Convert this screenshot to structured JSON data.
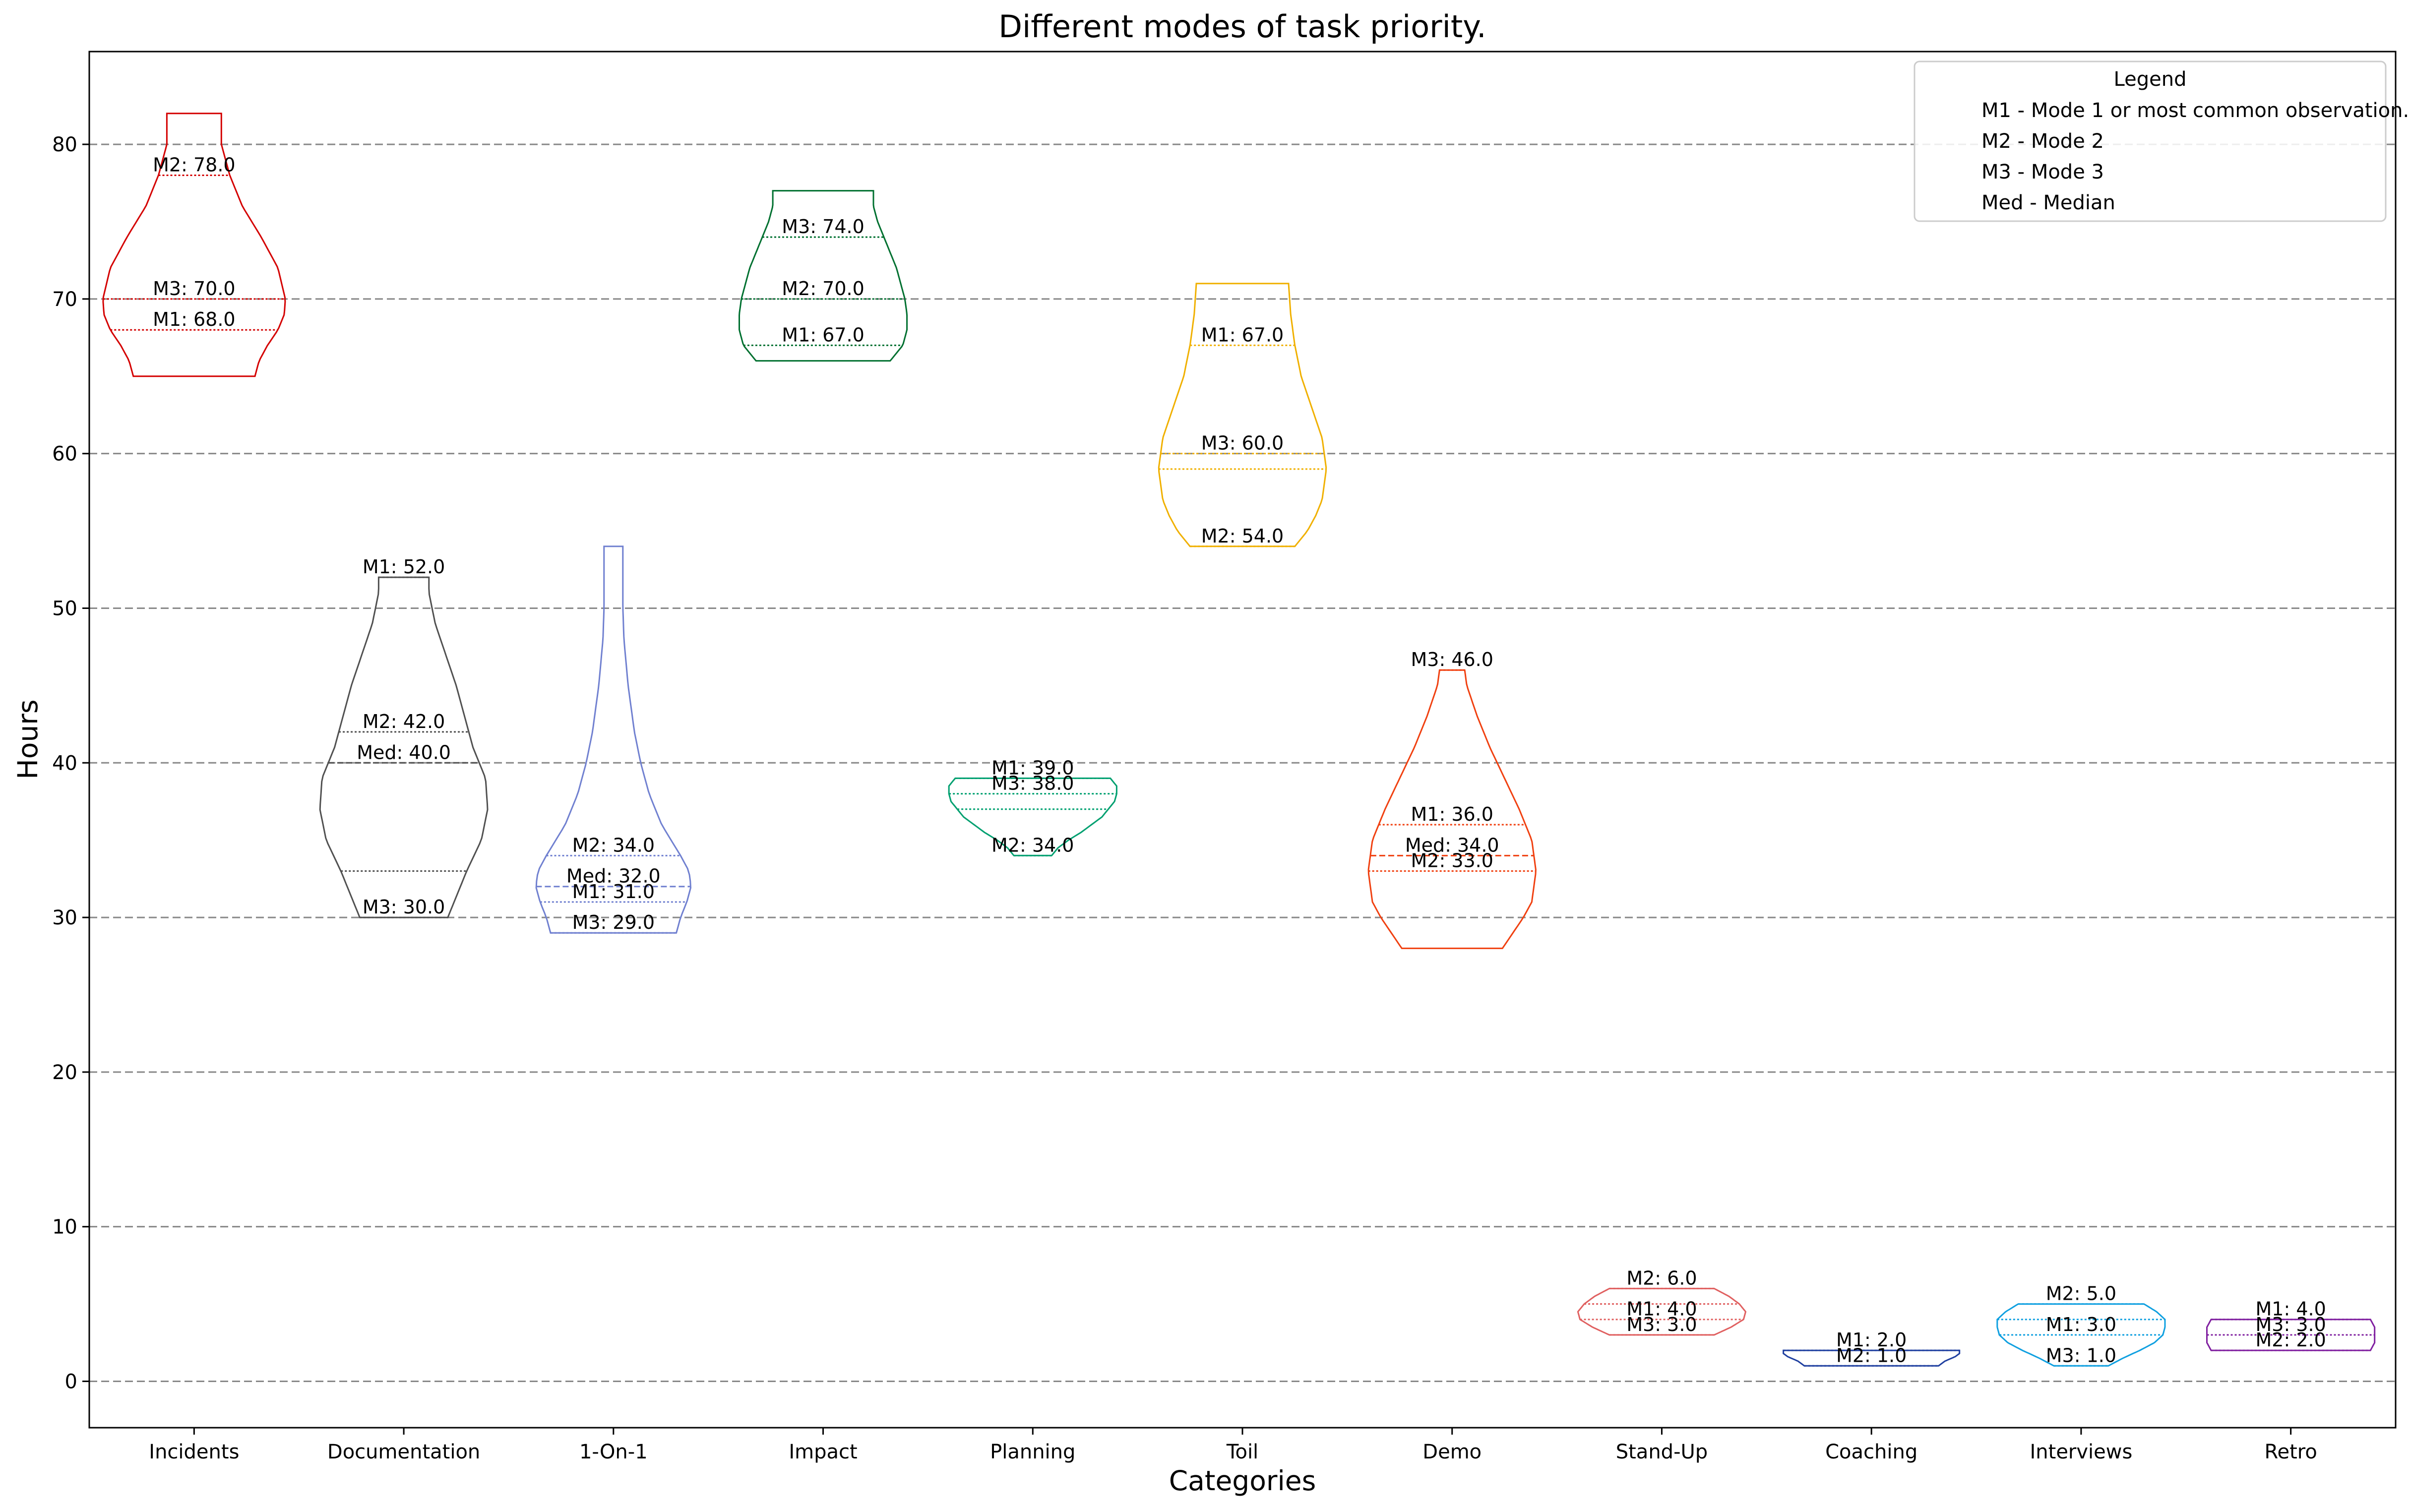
{
  "chart_data": {
    "type": "violin",
    "title": "Different modes of task priority.",
    "xlabel": "Categories",
    "ylabel": "Hours",
    "ylim": [
      -3,
      86
    ],
    "yticks": [
      0,
      10,
      20,
      30,
      40,
      50,
      60,
      70,
      80
    ],
    "grid": "horizontal dashed",
    "legend": {
      "title": "Legend",
      "placement": "top-right",
      "entries": [
        "M1 - Mode 1 or most common observation.",
        "M2 - Mode 2",
        "M3 - Mode 3",
        "Med - Median"
      ]
    },
    "categories": [
      {
        "name": "Incidents",
        "color": "#d40000",
        "min": 65,
        "max": 82,
        "profile": [
          [
            65,
            0.58
          ],
          [
            66,
            0.62
          ],
          [
            67,
            0.7
          ],
          [
            68,
            0.8
          ],
          [
            69,
            0.86
          ],
          [
            70,
            0.87
          ],
          [
            72,
            0.8
          ],
          [
            74,
            0.64
          ],
          [
            76,
            0.46
          ],
          [
            78,
            0.34
          ],
          [
            80,
            0.26
          ],
          [
            82,
            0.26
          ]
        ],
        "lines": [
          {
            "label": "M2: 78.0",
            "y": 78
          },
          {
            "label": "M3: 70.0",
            "y": 70
          },
          {
            "label": "M1: 68.0",
            "y": 68
          }
        ]
      },
      {
        "name": "Documentation",
        "color": "#505050",
        "min": 30,
        "max": 52,
        "profile": [
          [
            30,
            0.42
          ],
          [
            31,
            0.48
          ],
          [
            33,
            0.6
          ],
          [
            35,
            0.74
          ],
          [
            37,
            0.8
          ],
          [
            39,
            0.78
          ],
          [
            41,
            0.66
          ],
          [
            43,
            0.58
          ],
          [
            45,
            0.5
          ],
          [
            47,
            0.4
          ],
          [
            49,
            0.3
          ],
          [
            51,
            0.24
          ],
          [
            52,
            0.24
          ]
        ],
        "lines": [
          {
            "label": "M1: 52.0",
            "y": 52
          },
          {
            "label": "M2: 42.0",
            "y": 42
          },
          {
            "label": "Med: 40.0",
            "y": 40
          },
          {
            "label": "",
            "y": 33
          },
          {
            "label": "M3: 30.0",
            "y": 30
          }
        ]
      },
      {
        "name": "1-On-1",
        "color": "#7080d0",
        "min": 29,
        "max": 54,
        "profile": [
          [
            29,
            0.6
          ],
          [
            30,
            0.64
          ],
          [
            31,
            0.7
          ],
          [
            32,
            0.74
          ],
          [
            33,
            0.72
          ],
          [
            34,
            0.64
          ],
          [
            36,
            0.46
          ],
          [
            38,
            0.34
          ],
          [
            40,
            0.26
          ],
          [
            42,
            0.2
          ],
          [
            45,
            0.14
          ],
          [
            48,
            0.1
          ],
          [
            50,
            0.09
          ],
          [
            52,
            0.09
          ],
          [
            54,
            0.09
          ]
        ],
        "lines": [
          {
            "label": "M2: 34.0",
            "y": 34
          },
          {
            "label": "Med: 32.0",
            "y": 32
          },
          {
            "label": "M1: 31.0",
            "y": 31
          },
          {
            "label": "M3: 29.0",
            "y": 29
          }
        ]
      },
      {
        "name": "Impact",
        "color": "#007030",
        "min": 66,
        "max": 77,
        "profile": [
          [
            66,
            0.64
          ],
          [
            67,
            0.76
          ],
          [
            68,
            0.8
          ],
          [
            69,
            0.8
          ],
          [
            70,
            0.78
          ],
          [
            72,
            0.7
          ],
          [
            73,
            0.64
          ],
          [
            74,
            0.58
          ],
          [
            75,
            0.52
          ],
          [
            76,
            0.48
          ],
          [
            77,
            0.48
          ]
        ],
        "lines": [
          {
            "label": "M3: 74.0",
            "y": 74
          },
          {
            "label": "M2: 70.0",
            "y": 70
          },
          {
            "label": "M1: 67.0",
            "y": 67
          }
        ]
      },
      {
        "name": "Planning",
        "color": "#00a070",
        "min": 34,
        "max": 39,
        "profile": [
          [
            34,
            0.18
          ],
          [
            34.5,
            0.24
          ],
          [
            35,
            0.34
          ],
          [
            35.5,
            0.46
          ],
          [
            36,
            0.56
          ],
          [
            36.5,
            0.66
          ],
          [
            37,
            0.72
          ],
          [
            37.5,
            0.78
          ],
          [
            38,
            0.8
          ],
          [
            38.5,
            0.8
          ],
          [
            39,
            0.74
          ]
        ],
        "lines": [
          {
            "label": "M1: 39.0",
            "y": 39
          },
          {
            "label": "M3: 38.0",
            "y": 38
          },
          {
            "label": "",
            "y": 37
          },
          {
            "label": "M2: 34.0",
            "y": 34
          }
        ]
      },
      {
        "name": "Toil",
        "color": "#f0b000",
        "min": 54,
        "max": 71,
        "profile": [
          [
            54,
            0.5
          ],
          [
            55,
            0.62
          ],
          [
            56,
            0.7
          ],
          [
            57,
            0.76
          ],
          [
            59,
            0.8
          ],
          [
            61,
            0.76
          ],
          [
            63,
            0.66
          ],
          [
            65,
            0.56
          ],
          [
            67,
            0.5
          ],
          [
            69,
            0.46
          ],
          [
            71,
            0.44
          ]
        ],
        "lines": [
          {
            "label": "M1: 67.0",
            "y": 67
          },
          {
            "label": "M3: 60.0",
            "y": 60
          },
          {
            "label": "",
            "y": 59
          },
          {
            "label": "M2: 54.0",
            "y": 54
          }
        ]
      },
      {
        "name": "Demo",
        "color": "#f04010",
        "min": 28,
        "max": 46,
        "profile": [
          [
            28,
            0.48
          ],
          [
            29,
            0.58
          ],
          [
            30,
            0.68
          ],
          [
            31,
            0.76
          ],
          [
            33,
            0.8
          ],
          [
            35,
            0.76
          ],
          [
            37,
            0.64
          ],
          [
            39,
            0.5
          ],
          [
            41,
            0.36
          ],
          [
            43,
            0.24
          ],
          [
            45,
            0.14
          ],
          [
            46,
            0.12
          ]
        ],
        "lines": [
          {
            "label": "M3: 46.0",
            "y": 46
          },
          {
            "label": "M1: 36.0",
            "y": 36
          },
          {
            "label": "Med: 34.0",
            "y": 34
          },
          {
            "label": "M2: 33.0",
            "y": 33
          }
        ]
      },
      {
        "name": "Stand-Up",
        "color": "#e06060",
        "min": 3,
        "max": 6,
        "profile": [
          [
            3,
            0.5
          ],
          [
            3.5,
            0.66
          ],
          [
            4,
            0.78
          ],
          [
            4.5,
            0.8
          ],
          [
            5,
            0.74
          ],
          [
            5.5,
            0.64
          ],
          [
            6,
            0.5
          ]
        ],
        "lines": [
          {
            "label": "M2: 6.0",
            "y": 6
          },
          {
            "label": "",
            "y": 5
          },
          {
            "label": "M1: 4.0",
            "y": 4
          },
          {
            "label": "M3: 3.0",
            "y": 3
          }
        ]
      },
      {
        "name": "Coaching",
        "color": "#2040a0",
        "min": 1,
        "max": 2,
        "profile": [
          [
            1,
            0.64
          ],
          [
            1.3,
            0.7
          ],
          [
            1.6,
            0.8
          ],
          [
            1.8,
            0.84
          ],
          [
            2,
            0.84
          ]
        ],
        "lines": [
          {
            "label": "M1: 2.0",
            "y": 2
          },
          {
            "label": "M2: 1.0",
            "y": 1
          }
        ]
      },
      {
        "name": "Interviews",
        "color": "#10a0e0",
        "min": 1,
        "max": 5,
        "profile": [
          [
            1,
            0.26
          ],
          [
            1.5,
            0.4
          ],
          [
            2,
            0.56
          ],
          [
            2.5,
            0.7
          ],
          [
            3,
            0.78
          ],
          [
            3.5,
            0.8
          ],
          [
            4,
            0.8
          ],
          [
            4.5,
            0.72
          ],
          [
            5,
            0.6
          ]
        ],
        "lines": [
          {
            "label": "M2: 5.0",
            "y": 5
          },
          {
            "label": "",
            "y": 4
          },
          {
            "label": "M1: 3.0",
            "y": 3
          },
          {
            "label": "M3: 1.0",
            "y": 1
          }
        ]
      },
      {
        "name": "Retro",
        "color": "#8020a0",
        "min": 2,
        "max": 4,
        "profile": [
          [
            2,
            0.76
          ],
          [
            2.5,
            0.8
          ],
          [
            3,
            0.8
          ],
          [
            3.5,
            0.8
          ],
          [
            4,
            0.76
          ]
        ],
        "lines": [
          {
            "label": "M1: 4.0",
            "y": 4
          },
          {
            "label": "M3: 3.0",
            "y": 3
          },
          {
            "label": "M2: 2.0",
            "y": 2
          }
        ]
      }
    ]
  }
}
